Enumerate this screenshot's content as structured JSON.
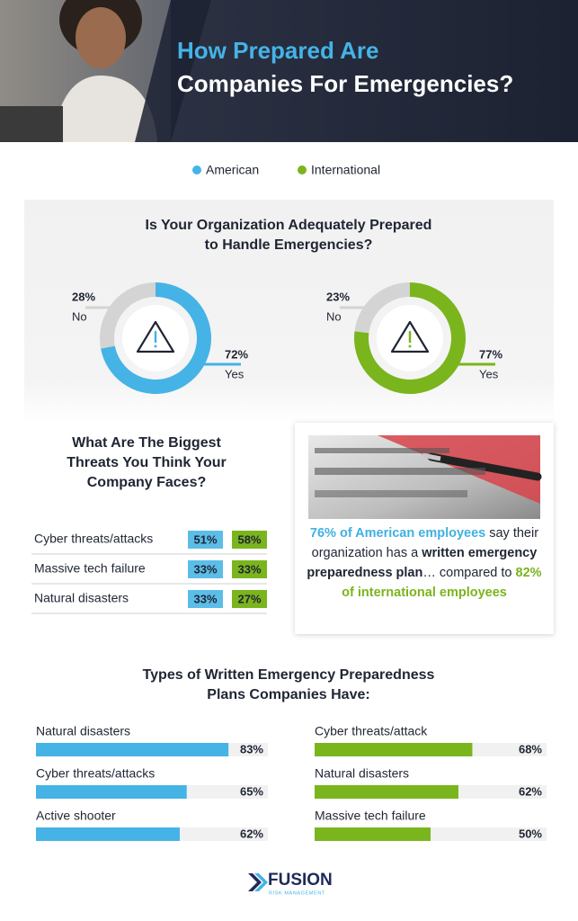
{
  "header": {
    "title_line1": "How Prepared Are",
    "title_line2": "Companies For Emergencies?"
  },
  "chart_data": [
    {
      "type": "donut",
      "title_line1": "Is Your Organization Adequately Prepared",
      "title_line2": "to Handle Emergencies?",
      "series": [
        {
          "name": "American",
          "color": "#45b3e6",
          "categories": [
            "Yes",
            "No"
          ],
          "values": [
            72,
            28
          ],
          "value_labels": [
            "72%",
            "28%"
          ],
          "colors": [
            "#45b3e6",
            "#d4d4d4"
          ]
        },
        {
          "name": "International",
          "color": "#7ab51d",
          "categories": [
            "Yes",
            "No"
          ],
          "values": [
            77,
            23
          ],
          "value_labels": [
            "77%",
            "23%"
          ],
          "colors": [
            "#7ab51d",
            "#d4d4d4"
          ]
        }
      ]
    },
    {
      "type": "table",
      "title_lines": [
        "What Are The Biggest",
        "Threats You Think Your",
        "Company Faces?"
      ],
      "categories": [
        "Cyber threats/attacks",
        "Massive tech failure",
        "Natural disasters"
      ],
      "series": [
        {
          "name": "American",
          "color": "#5bbde8",
          "values": [
            51,
            33,
            33
          ],
          "value_labels": [
            "51%",
            "33%",
            "33%"
          ]
        },
        {
          "name": "International",
          "color": "#7ab51d",
          "values": [
            58,
            33,
            27
          ],
          "value_labels": [
            "58%",
            "33%",
            "27%"
          ]
        }
      ]
    },
    {
      "type": "bar",
      "title_line1": "Types of Written Emergency Preparedness",
      "title_line2": "Plans Companies Have:",
      "xlim": [
        0,
        100
      ],
      "series": [
        {
          "name": "American",
          "color": "#45b3e6",
          "categories": [
            "Natural disasters",
            "Cyber threats/attacks",
            "Active shooter"
          ],
          "values": [
            83,
            65,
            62
          ],
          "value_labels": [
            "83%",
            "65%",
            "62%"
          ]
        },
        {
          "name": "International",
          "color": "#7ab51d",
          "categories": [
            "Cyber threats/attack",
            "Natural disasters",
            "Massive tech failure"
          ],
          "values": [
            68,
            62,
            50
          ],
          "value_labels": [
            "68%",
            "62%",
            "50%"
          ]
        }
      ]
    }
  ],
  "callout": {
    "parts": [
      "76% of American employees",
      " say their organization has a ",
      "written emergency preparedness plan",
      "… compared to ",
      "82% of international employees"
    ]
  },
  "footer": {
    "logo": "FUSION",
    "tagline": "RISK MANAGEMENT"
  }
}
